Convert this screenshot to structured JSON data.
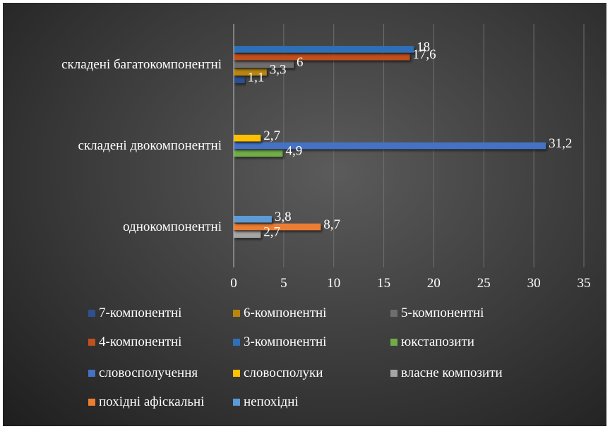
{
  "chart_data": {
    "type": "bar",
    "orientation": "horizontal",
    "categories": [
      "однокомпонентні",
      "складені двокомпонентні",
      "складені багатокомпонентні"
    ],
    "xlim": [
      0,
      35
    ],
    "x_ticks": [
      0,
      5,
      10,
      15,
      20,
      25,
      30,
      35
    ],
    "grid": "vertical",
    "legend_position": "bottom",
    "series": [
      {
        "name": "7-компонентні",
        "color": "#2f4f8f",
        "values": [
          null,
          null,
          1.1
        ],
        "labels": [
          "",
          "",
          "1,1"
        ]
      },
      {
        "name": "6-компонентні",
        "color": "#b8860b",
        "values": [
          null,
          null,
          3.3
        ],
        "labels": [
          "",
          "",
          "3,3"
        ]
      },
      {
        "name": "5-компонентні",
        "color": "#6e6e6e",
        "values": [
          null,
          null,
          6
        ],
        "labels": [
          "",
          "",
          "6"
        ]
      },
      {
        "name": "4-компонентні",
        "color": "#c0501e",
        "values": [
          null,
          null,
          17.6
        ],
        "labels": [
          "",
          "",
          "17,6"
        ]
      },
      {
        "name": "3-компонентні",
        "color": "#2e6fb8",
        "values": [
          null,
          null,
          18
        ],
        "labels": [
          "",
          "",
          "18"
        ]
      },
      {
        "name": "юкстапозити",
        "color": "#70ad47",
        "values": [
          null,
          4.9,
          null
        ],
        "labels": [
          "",
          "4,9",
          ""
        ]
      },
      {
        "name": "словосполучення",
        "color": "#4472c4",
        "values": [
          null,
          31.2,
          null
        ],
        "labels": [
          "",
          "31,2",
          ""
        ]
      },
      {
        "name": "словосполуки",
        "color": "#ffc000",
        "values": [
          null,
          2.7,
          null
        ],
        "labels": [
          "",
          "2,7",
          ""
        ]
      },
      {
        "name": "власне композити",
        "color": "#a5a5a5",
        "values": [
          2.7,
          null,
          null
        ],
        "labels": [
          "2,7",
          "",
          ""
        ]
      },
      {
        "name": "похідні афіскальні",
        "color": "#ed7d31",
        "values": [
          8.7,
          null,
          null
        ],
        "labels": [
          "8,7",
          "",
          ""
        ]
      },
      {
        "name": "непохідні",
        "color": "#5b9bd5",
        "values": [
          3.8,
          null,
          null
        ],
        "labels": [
          "3,8",
          "",
          ""
        ]
      }
    ]
  }
}
